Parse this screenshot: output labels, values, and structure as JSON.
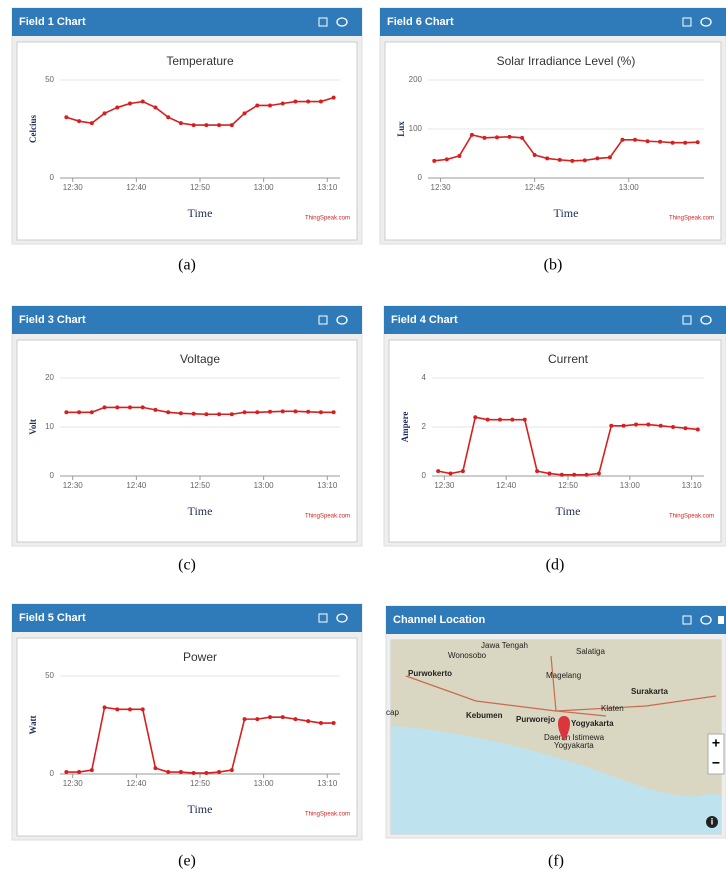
{
  "panels": [
    {
      "header": "Field 1 Chart",
      "caption": "(a)"
    },
    {
      "header": "Field 6 Chart",
      "caption": "(b)"
    },
    {
      "header": "Field 3 Chart",
      "caption": "(c)"
    },
    {
      "header": "Field 4 Chart",
      "caption": "(d)"
    },
    {
      "header": "Field 5 Chart",
      "caption": "(e)"
    },
    {
      "header": "Channel Location",
      "caption": "(f)"
    }
  ],
  "chart_data": [
    {
      "type": "line",
      "title": "Temperature",
      "y_label": "Celcius",
      "x_label": "Time",
      "credit": "ThingSpeak.com",
      "color": "#d62020",
      "x": [
        "12:29",
        "12:31",
        "12:33",
        "12:35",
        "12:37",
        "12:39",
        "12:41",
        "12:43",
        "12:45",
        "12:47",
        "12:49",
        "12:51",
        "12:53",
        "12:55",
        "12:57",
        "12:59",
        "13:01",
        "13:03",
        "13:05",
        "13:07",
        "13:09",
        "13:11"
      ],
      "values": [
        31,
        29,
        28,
        33,
        36,
        38,
        39,
        36,
        31,
        28,
        27,
        27,
        27,
        27,
        33,
        37,
        37,
        38,
        39,
        39,
        39,
        41
      ],
      "xlim": [
        "12:28",
        "13:12"
      ],
      "xticks": [
        "12:30",
        "12:40",
        "12:50",
        "13:00",
        "13:10"
      ],
      "ylim": [
        0,
        50
      ],
      "yticks": [
        0,
        50
      ]
    },
    {
      "type": "line",
      "title": "Solar Irradiance Level (%)",
      "y_label": "Lux",
      "x_label": "Time",
      "credit": "ThingSpeak.com",
      "color": "#d62020",
      "x": [
        "12:29",
        "12:31",
        "12:33",
        "12:35",
        "12:37",
        "12:39",
        "12:41",
        "12:43",
        "12:45",
        "12:47",
        "12:49",
        "12:51",
        "12:53",
        "12:55",
        "12:57",
        "12:59",
        "13:01",
        "13:03",
        "13:05",
        "13:07",
        "13:09",
        "13:11"
      ],
      "values": [
        35,
        38,
        45,
        88,
        82,
        83,
        84,
        82,
        47,
        40,
        37,
        35,
        36,
        40,
        42,
        78,
        78,
        75,
        74,
        72,
        72,
        73
      ],
      "xlim": [
        "12:28",
        "13:12"
      ],
      "xticks": [
        "12:30",
        "12:45",
        "13:00"
      ],
      "ylim": [
        0,
        200
      ],
      "yticks": [
        0,
        100,
        200
      ]
    },
    {
      "type": "line",
      "title": "Voltage",
      "y_label": "Volt",
      "x_label": "Time",
      "credit": "ThingSpeak.com",
      "color": "#d62020",
      "x": [
        "12:29",
        "12:31",
        "12:33",
        "12:35",
        "12:37",
        "12:39",
        "12:41",
        "12:43",
        "12:45",
        "12:47",
        "12:49",
        "12:51",
        "12:53",
        "12:55",
        "12:57",
        "12:59",
        "13:01",
        "13:03",
        "13:05",
        "13:07",
        "13:09",
        "13:11"
      ],
      "values": [
        13,
        13,
        13,
        14,
        14,
        14,
        14,
        13.5,
        13,
        12.8,
        12.7,
        12.6,
        12.6,
        12.6,
        13,
        13,
        13.1,
        13.2,
        13.2,
        13.1,
        13,
        13
      ],
      "xlim": [
        "12:28",
        "13:12"
      ],
      "xticks": [
        "12:30",
        "12:40",
        "12:50",
        "13:00",
        "13:10"
      ],
      "ylim": [
        0,
        20
      ],
      "yticks": [
        0,
        10,
        20
      ]
    },
    {
      "type": "line",
      "title": "Current",
      "y_label": "Ampere",
      "x_label": "Time",
      "credit": "ThingSpeak.com",
      "color": "#d62020",
      "x": [
        "12:29",
        "12:31",
        "12:33",
        "12:35",
        "12:37",
        "12:39",
        "12:41",
        "12:43",
        "12:45",
        "12:47",
        "12:49",
        "12:51",
        "12:53",
        "12:55",
        "12:57",
        "12:59",
        "13:01",
        "13:03",
        "13:05",
        "13:07",
        "13:09",
        "13:11"
      ],
      "values": [
        0.2,
        0.1,
        0.2,
        2.4,
        2.3,
        2.3,
        2.3,
        2.3,
        0.2,
        0.1,
        0.05,
        0.05,
        0.05,
        0.1,
        2.05,
        2.05,
        2.1,
        2.1,
        2.05,
        2.0,
        1.95,
        1.9
      ],
      "xlim": [
        "12:28",
        "13:12"
      ],
      "xticks": [
        "12:30",
        "12:40",
        "12:50",
        "13:00",
        "13:10"
      ],
      "ylim": [
        0,
        4
      ],
      "yticks": [
        0,
        2,
        4
      ]
    },
    {
      "type": "line",
      "title": "Power",
      "y_label": "Watt",
      "x_label": "Time",
      "credit": "ThingSpeak.com",
      "color": "#d62020",
      "x": [
        "12:29",
        "12:31",
        "12:33",
        "12:35",
        "12:37",
        "12:39",
        "12:41",
        "12:43",
        "12:45",
        "12:47",
        "12:49",
        "12:51",
        "12:53",
        "12:55",
        "12:57",
        "12:59",
        "13:01",
        "13:03",
        "13:05",
        "13:07",
        "13:09",
        "13:11"
      ],
      "values": [
        1,
        1,
        2,
        34,
        33,
        33,
        33,
        3,
        1,
        1,
        0.5,
        0.5,
        1,
        2,
        28,
        28,
        29,
        29,
        28,
        27,
        26,
        26
      ],
      "xlim": [
        "12:28",
        "13:12"
      ],
      "xticks": [
        "12:30",
        "12:40",
        "12:50",
        "13:00",
        "13:10"
      ],
      "ylim": [
        0,
        50
      ],
      "yticks": [
        0,
        50
      ]
    }
  ],
  "map": {
    "labels": [
      "Jawa Tengah",
      "Wonosobo",
      "Salatiga",
      "Purwokerto",
      "Magelang",
      "Surakarta",
      "Klaten",
      "Kebumen",
      "Purworejo",
      "Yogyakarta",
      "Daerah Istimewa",
      "Yogyakarta",
      "cap"
    ],
    "zoom_in": "+",
    "zoom_out": "−",
    "info": "i"
  }
}
